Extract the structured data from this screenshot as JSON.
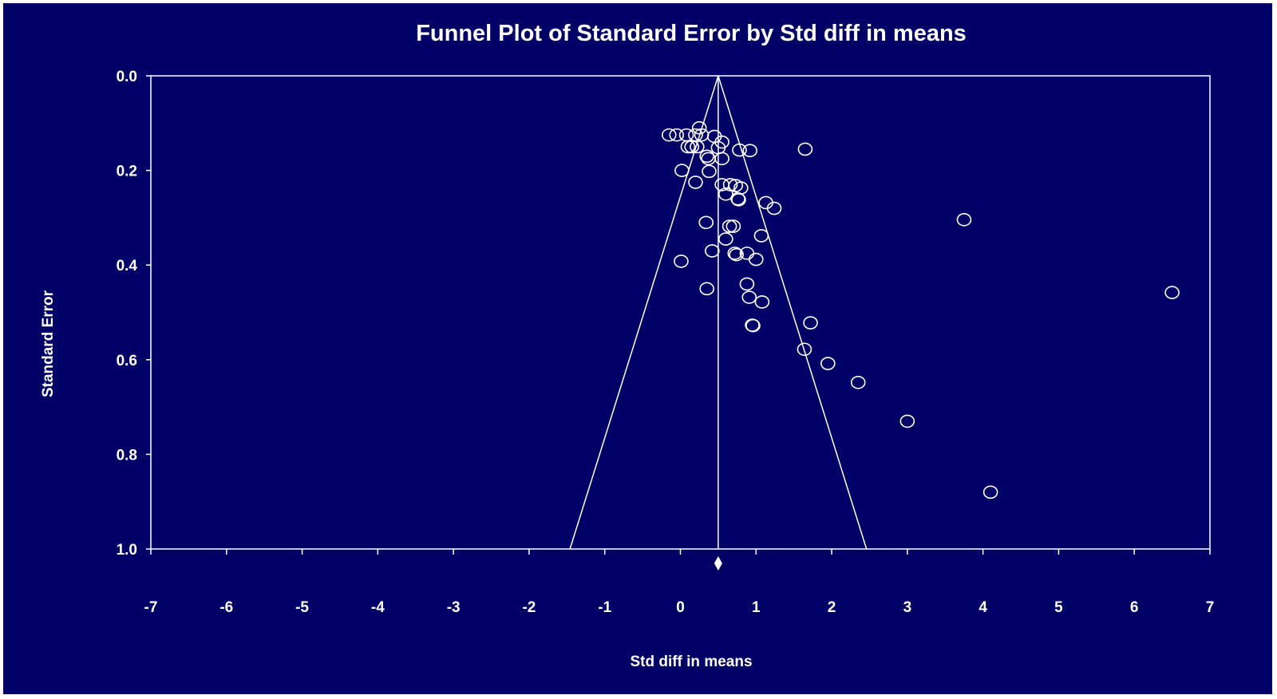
{
  "chart_data": {
    "type": "scatter",
    "title": "Funnel Plot of Standard Error by Std diff in means",
    "xlabel": "Std diff in means",
    "ylabel": "Standard Error",
    "xlim": [
      -7,
      7
    ],
    "ylim": [
      0,
      1
    ],
    "y_inverted": true,
    "grid": false,
    "x_ticks": [
      "-7",
      "-6",
      "-5",
      "-4",
      "-3",
      "-2",
      "-1",
      "0",
      "1",
      "2",
      "3",
      "4",
      "5",
      "6",
      "7"
    ],
    "y_ticks": [
      "0.0",
      "0.2",
      "0.4",
      "0.6",
      "0.8",
      "1.0"
    ],
    "summary_effect": 0.5,
    "colors": {
      "background": "#000066",
      "foreground": "#ffffff"
    },
    "points": [
      {
        "x": -0.15,
        "y": 0.125
      },
      {
        "x": -0.05,
        "y": 0.125
      },
      {
        "x": 0.08,
        "y": 0.125
      },
      {
        "x": 0.2,
        "y": 0.125
      },
      {
        "x": 0.25,
        "y": 0.11
      },
      {
        "x": 0.28,
        "y": 0.125
      },
      {
        "x": 0.45,
        "y": 0.128
      },
      {
        "x": 0.55,
        "y": 0.14
      },
      {
        "x": 0.1,
        "y": 0.15
      },
      {
        "x": 0.15,
        "y": 0.15
      },
      {
        "x": 0.22,
        "y": 0.15
      },
      {
        "x": 0.5,
        "y": 0.152
      },
      {
        "x": 0.78,
        "y": 0.157
      },
      {
        "x": 0.92,
        "y": 0.158
      },
      {
        "x": 1.65,
        "y": 0.155
      },
      {
        "x": 0.35,
        "y": 0.17
      },
      {
        "x": 0.37,
        "y": 0.175
      },
      {
        "x": 0.55,
        "y": 0.175
      },
      {
        "x": 0.02,
        "y": 0.2
      },
      {
        "x": 0.38,
        "y": 0.202
      },
      {
        "x": 0.2,
        "y": 0.225
      },
      {
        "x": 0.55,
        "y": 0.23
      },
      {
        "x": 0.66,
        "y": 0.23
      },
      {
        "x": 0.73,
        "y": 0.232
      },
      {
        "x": 0.8,
        "y": 0.237
      },
      {
        "x": 0.6,
        "y": 0.25
      },
      {
        "x": 0.76,
        "y": 0.26
      },
      {
        "x": 0.77,
        "y": 0.262
      },
      {
        "x": 1.13,
        "y": 0.268
      },
      {
        "x": 1.24,
        "y": 0.28
      },
      {
        "x": 3.75,
        "y": 0.304
      },
      {
        "x": 0.34,
        "y": 0.31
      },
      {
        "x": 0.65,
        "y": 0.318
      },
      {
        "x": 0.7,
        "y": 0.318
      },
      {
        "x": 1.07,
        "y": 0.338
      },
      {
        "x": 0.6,
        "y": 0.345
      },
      {
        "x": 0.42,
        "y": 0.37
      },
      {
        "x": 0.72,
        "y": 0.375
      },
      {
        "x": 0.74,
        "y": 0.378
      },
      {
        "x": 0.88,
        "y": 0.375
      },
      {
        "x": 1.0,
        "y": 0.388
      },
      {
        "x": 0.01,
        "y": 0.392
      },
      {
        "x": 0.88,
        "y": 0.44
      },
      {
        "x": 0.35,
        "y": 0.45
      },
      {
        "x": 6.5,
        "y": 0.458
      },
      {
        "x": 0.91,
        "y": 0.468
      },
      {
        "x": 1.08,
        "y": 0.478
      },
      {
        "x": 0.95,
        "y": 0.527
      },
      {
        "x": 0.96,
        "y": 0.528
      },
      {
        "x": 1.72,
        "y": 0.522
      },
      {
        "x": 1.64,
        "y": 0.578
      },
      {
        "x": 1.95,
        "y": 0.608
      },
      {
        "x": 2.35,
        "y": 0.648
      },
      {
        "x": 3.0,
        "y": 0.73
      },
      {
        "x": 4.1,
        "y": 0.88
      }
    ]
  }
}
